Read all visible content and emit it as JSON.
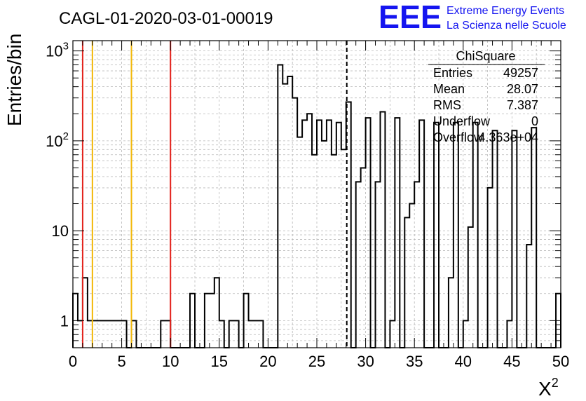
{
  "title": "CAGL-01-2020-03-01-00019",
  "logo": {
    "mark": "EEE",
    "line1": "Extreme Energy Events",
    "line2": "La Scienza nelle Scuole",
    "color": "#1515f0"
  },
  "stats_box": {
    "name": "ChiSquare",
    "rows": [
      {
        "label": "Entries",
        "value": "49257"
      },
      {
        "label": "Mean",
        "value": "28.07"
      },
      {
        "label": "RMS",
        "value": "7.387"
      },
      {
        "label": "Underflow",
        "value": "0"
      },
      {
        "label": "Overflow",
        "value": "4.363e+04"
      }
    ]
  },
  "chart_data": {
    "type": "histogram",
    "xlabel": "X",
    "xlabel_sup": "2",
    "ylabel": "Entries/bin",
    "xlim": [
      0,
      50
    ],
    "ylim": [
      0.5,
      1300
    ],
    "yscale": "log",
    "grid": true,
    "x_ticks": [
      "0",
      "5",
      "10",
      "15",
      "20",
      "25",
      "30",
      "35",
      "40",
      "45",
      "50"
    ],
    "y_ticks": [
      {
        "value": 1,
        "label": "1",
        "sup": ""
      },
      {
        "value": 10,
        "label": "10",
        "sup": ""
      },
      {
        "value": 100,
        "label": "10",
        "sup": "2"
      },
      {
        "value": 1000,
        "label": "10",
        "sup": "3"
      }
    ],
    "bin_width": 0.5,
    "bins": [
      [
        0,
        2
      ],
      [
        0.5,
        1
      ],
      [
        1,
        3
      ],
      [
        1.5,
        1
      ],
      [
        2,
        1
      ],
      [
        2.5,
        1
      ],
      [
        3,
        1
      ],
      [
        3.5,
        1
      ],
      [
        4,
        1
      ],
      [
        4.5,
        1
      ],
      [
        5,
        1
      ],
      [
        5.5,
        0
      ],
      [
        6,
        1
      ],
      [
        6.5,
        0
      ],
      [
        7,
        0
      ],
      [
        7.5,
        0
      ],
      [
        8,
        0
      ],
      [
        8.5,
        0
      ],
      [
        9,
        1
      ],
      [
        9.5,
        1
      ],
      [
        10,
        0
      ],
      [
        10.5,
        0
      ],
      [
        11,
        0
      ],
      [
        11.5,
        0
      ],
      [
        12,
        2
      ],
      [
        12.5,
        0
      ],
      [
        13,
        0
      ],
      [
        13.5,
        2
      ],
      [
        14,
        2
      ],
      [
        14.5,
        3
      ],
      [
        15,
        1
      ],
      [
        15.5,
        0
      ],
      [
        16,
        1
      ],
      [
        16.5,
        1
      ],
      [
        17,
        0
      ],
      [
        17.5,
        2
      ],
      [
        18,
        1
      ],
      [
        18.5,
        1
      ],
      [
        19,
        1
      ],
      [
        19.5,
        0
      ],
      [
        20,
        0
      ],
      [
        20.5,
        0
      ],
      [
        21,
        700
      ],
      [
        21.5,
        430
      ],
      [
        22,
        520
      ],
      [
        22.5,
        300
      ],
      [
        23,
        110
      ],
      [
        23.5,
        170
      ],
      [
        24,
        200
      ],
      [
        24.5,
        70
      ],
      [
        25,
        170
      ],
      [
        25.5,
        100
      ],
      [
        26,
        170
      ],
      [
        26.5,
        70
      ],
      [
        27,
        160
      ],
      [
        27.5,
        80
      ],
      [
        28,
        270
      ],
      [
        28.5,
        0
      ],
      [
        29,
        35
      ],
      [
        29.5,
        50
      ],
      [
        30,
        180
      ],
      [
        30.5,
        0
      ],
      [
        31,
        35
      ],
      [
        31.5,
        210
      ],
      [
        32,
        0
      ],
      [
        32.5,
        1
      ],
      [
        33,
        180
      ],
      [
        33.5,
        0
      ],
      [
        34,
        14
      ],
      [
        34.5,
        20
      ],
      [
        35,
        35
      ],
      [
        35.5,
        170
      ],
      [
        36,
        0
      ],
      [
        36.5,
        0
      ],
      [
        37,
        160
      ],
      [
        37.5,
        0
      ],
      [
        38,
        0
      ],
      [
        38.5,
        3
      ],
      [
        39,
        160
      ],
      [
        39.5,
        0
      ],
      [
        40,
        1
      ],
      [
        40.5,
        11
      ],
      [
        41,
        160
      ],
      [
        41.5,
        0
      ],
      [
        42,
        0
      ],
      [
        42.5,
        30
      ],
      [
        43,
        130
      ],
      [
        43.5,
        0
      ],
      [
        44,
        0
      ],
      [
        44.5,
        1
      ],
      [
        45,
        130
      ],
      [
        45.5,
        0
      ],
      [
        46,
        0
      ],
      [
        46.5,
        7
      ],
      [
        47,
        140
      ],
      [
        47.5,
        0
      ],
      [
        48,
        0
      ],
      [
        48.5,
        0
      ],
      [
        49,
        0
      ],
      [
        49.5,
        2
      ]
    ],
    "markers": [
      {
        "x": 1.0,
        "color": "#e3221b",
        "style": "solid"
      },
      {
        "x": 2.0,
        "color": "#f2b705",
        "style": "solid"
      },
      {
        "x": 6.0,
        "color": "#f2b705",
        "style": "solid"
      },
      {
        "x": 10.0,
        "color": "#e3221b",
        "style": "solid"
      },
      {
        "x": 28.07,
        "color": "#000000",
        "style": "dashed"
      }
    ]
  }
}
